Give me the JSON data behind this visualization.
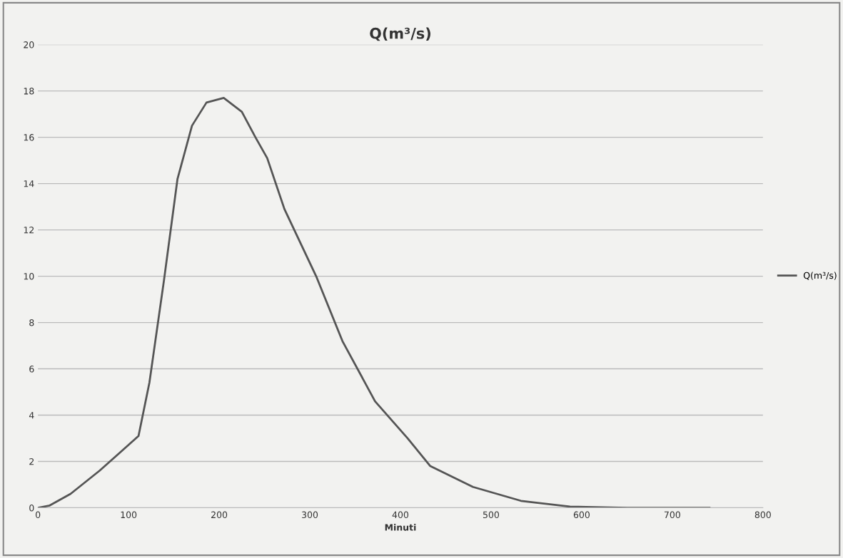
{
  "chart_data": {
    "type": "line",
    "title": "Q(m³/s)",
    "xlabel": "Minuti",
    "x": [
      0,
      13,
      36,
      68,
      91,
      111,
      123,
      139,
      154,
      170,
      186,
      205,
      225,
      240,
      253,
      272,
      307,
      336,
      372,
      408,
      433,
      480,
      533,
      587,
      650,
      741
    ],
    "series": [
      {
        "name": "Q(m³/s)",
        "color": "#555555",
        "values": [
          0,
          0.1,
          0.6,
          1.6,
          2.4,
          3.1,
          5.4,
          9.8,
          14.2,
          16.5,
          17.5,
          17.7,
          17.1,
          16.0,
          15.1,
          12.9,
          10.0,
          7.2,
          4.6,
          3.0,
          1.8,
          0.9,
          0.3,
          0.05,
          0,
          0
        ]
      }
    ],
    "xlim": [
      0,
      800
    ],
    "xticks": [
      0,
      100,
      200,
      300,
      400,
      500,
      600,
      700,
      800
    ],
    "ylim": [
      0,
      20
    ],
    "yticks": [
      0,
      2,
      4,
      6,
      8,
      10,
      12,
      14,
      16,
      18,
      20
    ],
    "grid": "y",
    "legend": "right",
    "marker": "none",
    "line_style": "solid"
  }
}
